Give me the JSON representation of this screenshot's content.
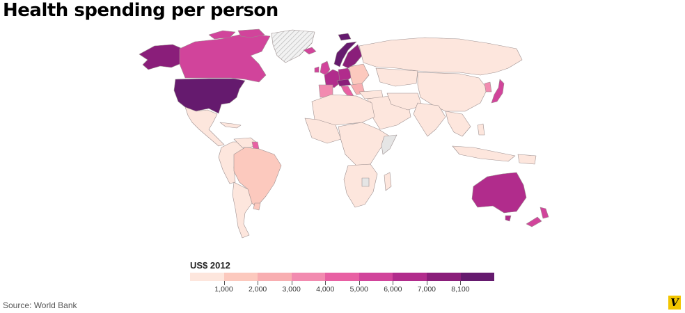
{
  "title": "Health spending per person",
  "legend": {
    "title": "US$ 2012",
    "ticks": [
      "1,000",
      "2,000",
      "3,000",
      "4,000",
      "5,000",
      "6,000",
      "7,000",
      "8,100"
    ],
    "colors": [
      "#fde6dd",
      "#fcc9be",
      "#f8aeb1",
      "#f28bb0",
      "#e860a3",
      "#d1449b",
      "#b12c8c",
      "#8a1e7a",
      "#651a6e"
    ]
  },
  "no_data_color": "#e5e5e5",
  "source": "Source: World Bank",
  "logo_text": "V"
}
